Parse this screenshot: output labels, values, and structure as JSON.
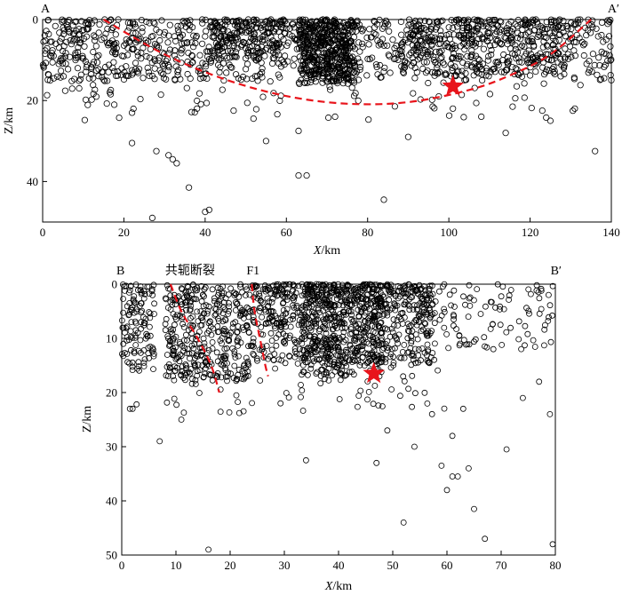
{
  "chart_data": [
    {
      "type": "scatter",
      "panel": "A",
      "left_label": "A",
      "right_label": "A′",
      "xlabel_var": "X",
      "xlabel_unit": "/km",
      "ylabel": "Z/km",
      "xlim": [
        0,
        140
      ],
      "ylim": [
        0,
        50
      ],
      "y_inverted": true,
      "xticks": [
        0,
        20,
        40,
        60,
        80,
        100,
        120,
        140
      ],
      "yticks": [
        0,
        20,
        40
      ],
      "marker": "open-circle",
      "clusters": [
        {
          "x_range": [
            0,
            140
          ],
          "z_range": [
            0,
            15
          ],
          "count": 900,
          "z_skew": 1.3
        },
        {
          "x_range": [
            63,
            77
          ],
          "z_range": [
            0,
            16
          ],
          "count": 450,
          "z_skew": 1.0
        },
        {
          "x_range": [
            40,
            60
          ],
          "z_range": [
            0,
            10
          ],
          "count": 180,
          "z_skew": 1.1
        },
        {
          "x_range": [
            88,
            130
          ],
          "z_range": [
            0,
            14
          ],
          "count": 300,
          "z_skew": 1.2
        },
        {
          "x_range": [
            0,
            30
          ],
          "z_range": [
            5,
            20
          ],
          "count": 80,
          "z_skew": 1.5
        },
        {
          "x_range": [
            10,
            135
          ],
          "z_range": [
            15,
            25
          ],
          "count": 60,
          "z_skew": 1.0
        }
      ],
      "sparse_events": [
        {
          "x": 22,
          "z": 23
        },
        {
          "x": 22,
          "z": 30.5
        },
        {
          "x": 28,
          "z": 32.5
        },
        {
          "x": 31,
          "z": 33.5
        },
        {
          "x": 32,
          "z": 34.5
        },
        {
          "x": 33,
          "z": 35.5
        },
        {
          "x": 36,
          "z": 41.5
        },
        {
          "x": 40,
          "z": 47.5
        },
        {
          "x": 41,
          "z": 47
        },
        {
          "x": 27,
          "z": 49
        },
        {
          "x": 38,
          "z": 22
        },
        {
          "x": 55,
          "z": 30
        },
        {
          "x": 63,
          "z": 27.5
        },
        {
          "x": 63,
          "z": 38.5
        },
        {
          "x": 65,
          "z": 38.5
        },
        {
          "x": 84,
          "z": 44.5
        },
        {
          "x": 90,
          "z": 29
        },
        {
          "x": 101,
          "z": 22
        },
        {
          "x": 108,
          "z": 24
        },
        {
          "x": 114,
          "z": 28
        },
        {
          "x": 123,
          "z": 22.5
        },
        {
          "x": 125,
          "z": 25
        },
        {
          "x": 131,
          "z": 22
        },
        {
          "x": 136,
          "z": 32.5
        },
        {
          "x": 47,
          "z": 22.5
        },
        {
          "x": 72,
          "z": 24
        },
        {
          "x": 96,
          "z": 21.5
        }
      ],
      "fault_trace": [
        [
          15,
          0
        ],
        [
          30,
          8.6
        ],
        [
          45,
          14.8
        ],
        [
          60,
          18.9
        ],
        [
          75,
          20.8
        ],
        [
          90,
          20.4
        ],
        [
          105,
          17.4
        ],
        [
          115,
          13.8
        ],
        [
          125,
          8.6
        ],
        [
          135,
          0
        ]
      ],
      "mainshock": {
        "x": 101,
        "z": 16.5
      }
    },
    {
      "type": "scatter",
      "panel": "B",
      "left_label": "B",
      "right_label": "B′",
      "xlabel_var": "X",
      "xlabel_unit": "/km",
      "ylabel": "Z/km",
      "xlim": [
        0,
        80
      ],
      "ylim": [
        0,
        50
      ],
      "y_inverted": true,
      "xticks": [
        0,
        10,
        20,
        30,
        40,
        50,
        60,
        70,
        80
      ],
      "yticks": [
        0,
        10,
        20,
        30,
        40,
        50
      ],
      "marker": "open-circle",
      "clusters": [
        {
          "x_range": [
            0,
            6
          ],
          "z_range": [
            0,
            16
          ],
          "count": 120,
          "z_skew": 1.2
        },
        {
          "x_range": [
            8,
            24
          ],
          "z_range": [
            0,
            18
          ],
          "count": 380,
          "z_skew": 1.2
        },
        {
          "x_range": [
            24,
            58
          ],
          "z_range": [
            0,
            15
          ],
          "count": 800,
          "z_skew": 1.4
        },
        {
          "x_range": [
            33,
            48
          ],
          "z_range": [
            0,
            17
          ],
          "count": 300,
          "z_skew": 1.0
        },
        {
          "x_range": [
            55,
            80
          ],
          "z_range": [
            0,
            12
          ],
          "count": 110,
          "z_skew": 1.1
        },
        {
          "x_range": [
            2,
            60
          ],
          "z_range": [
            15,
            24
          ],
          "count": 70,
          "z_skew": 1.0
        }
      ],
      "sparse_events": [
        {
          "x": 1.5,
          "z": 23
        },
        {
          "x": 2,
          "z": 23
        },
        {
          "x": 7,
          "z": 29
        },
        {
          "x": 11,
          "z": 25
        },
        {
          "x": 16,
          "z": 49
        },
        {
          "x": 34,
          "z": 32.5
        },
        {
          "x": 47,
          "z": 33
        },
        {
          "x": 49,
          "z": 27
        },
        {
          "x": 52,
          "z": 44
        },
        {
          "x": 54,
          "z": 30
        },
        {
          "x": 59,
          "z": 33.5
        },
        {
          "x": 60,
          "z": 38
        },
        {
          "x": 61,
          "z": 28
        },
        {
          "x": 61,
          "z": 35.5
        },
        {
          "x": 62,
          "z": 35.5
        },
        {
          "x": 64,
          "z": 34
        },
        {
          "x": 65,
          "z": 41.5
        },
        {
          "x": 67,
          "z": 47
        },
        {
          "x": 71,
          "z": 30.5
        },
        {
          "x": 79,
          "z": 24
        },
        {
          "x": 79.5,
          "z": 48
        },
        {
          "x": 63,
          "z": 23
        },
        {
          "x": 74,
          "z": 21
        },
        {
          "x": 77,
          "z": 18
        }
      ],
      "faults": [
        {
          "label": "共轭断裂",
          "label_x": 9,
          "trace": [
            [
              9,
              0
            ],
            [
              11,
              5
            ],
            [
              14,
              10
            ],
            [
              16.5,
              15
            ],
            [
              18,
              20
            ]
          ]
        },
        {
          "label": "F1",
          "label_x": 24,
          "trace": [
            [
              24,
              0
            ],
            [
              24.5,
              5
            ],
            [
              25.5,
              10
            ],
            [
              26.5,
              15
            ],
            [
              27,
              17
            ]
          ]
        }
      ],
      "mainshock": {
        "x": 46.5,
        "z": 16.5
      }
    }
  ]
}
